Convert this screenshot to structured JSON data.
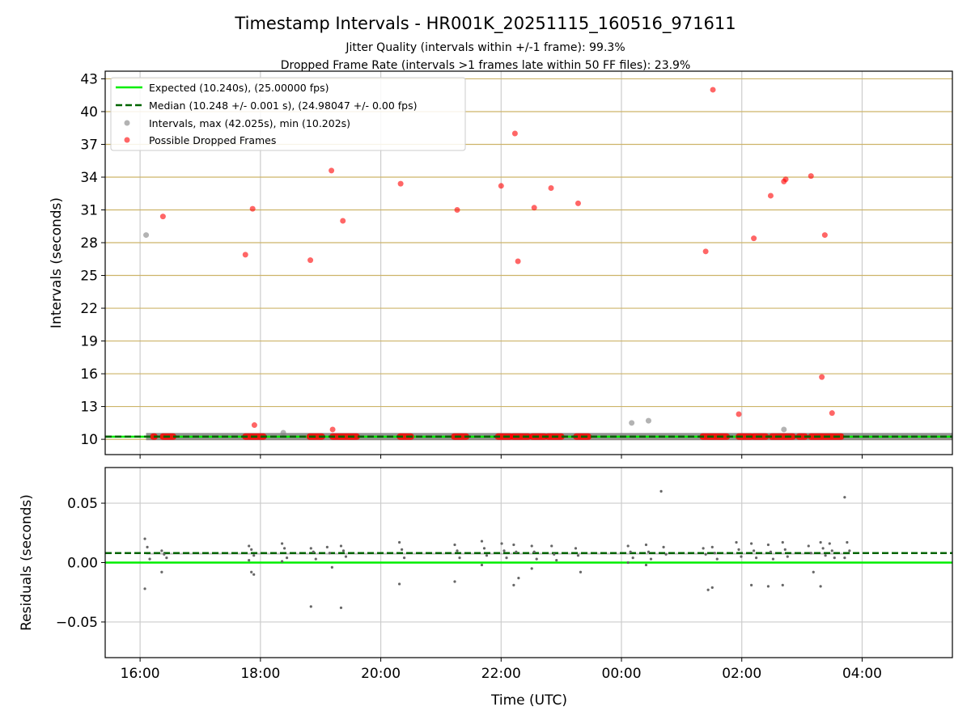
{
  "chart_data": [
    {
      "type": "scatter",
      "panel": "top",
      "title": "Timestamp Intervals - HR001K_20251115_160516_971611",
      "subtitle_1": "Jitter Quality (intervals within +/-1 frame): 99.3%",
      "subtitle_2": "Dropped Frame Rate (intervals >1 frames late within 50 FF files): 23.9%",
      "xlabel": "Time (UTC)",
      "ylabel": "Intervals (seconds)",
      "xlim": [
        15.42,
        29.5
      ],
      "ylim": [
        8.6,
        43.7
      ],
      "x_ticks": [
        16,
        18,
        20,
        22,
        24,
        26,
        28
      ],
      "x_tick_labels": [
        "16:00",
        "18:00",
        "20:00",
        "22:00",
        "00:00",
        "02:00",
        "04:00"
      ],
      "y_ticks": [
        10,
        13,
        16,
        19,
        22,
        25,
        28,
        31,
        34,
        37,
        40,
        43
      ],
      "y_tick_labels": [
        "10",
        "13",
        "16",
        "19",
        "22",
        "25",
        "28",
        "31",
        "34",
        "37",
        "40",
        "43"
      ],
      "grid": true,
      "legend_location": "top-left",
      "colors": {
        "expected": "#00ee00",
        "median": "#006400",
        "intervals": "#808080",
        "dropped": "#ff0000",
        "horizontal_grid": "#cdb469",
        "vertical_grid": "#cccccc"
      },
      "series": [
        {
          "name": "Expected (10.240s), (25.00000 fps)",
          "kind": "hline",
          "value": 10.24
        },
        {
          "name": "Median (10.248 +/- 0.001 s), (24.98047 +/- 0.00 fps)",
          "kind": "hline-dashed",
          "value": 10.248
        },
        {
          "name": "Intervals, max (42.025s), min (10.202s)",
          "kind": "scatter",
          "x_range": [
            16.1,
            29.5
          ],
          "baseline": 10.248,
          "points": [
            {
              "x": 16.1,
              "y": 28.7
            },
            {
              "x": 18.38,
              "y": 10.6
            },
            {
              "x": 24.17,
              "y": 11.5
            },
            {
              "x": 24.45,
              "y": 11.7
            },
            {
              "x": 26.7,
              "y": 10.9
            }
          ]
        },
        {
          "name": "Possible Dropped Frames",
          "kind": "scatter",
          "points": [
            {
              "x": 16.38,
              "y": 30.4
            },
            {
              "x": 17.75,
              "y": 26.9
            },
            {
              "x": 17.87,
              "y": 31.1
            },
            {
              "x": 17.9,
              "y": 11.3
            },
            {
              "x": 18.83,
              "y": 26.4
            },
            {
              "x": 19.18,
              "y": 34.6
            },
            {
              "x": 19.2,
              "y": 10.9
            },
            {
              "x": 19.37,
              "y": 30.0
            },
            {
              "x": 20.33,
              "y": 33.4
            },
            {
              "x": 21.27,
              "y": 31.0
            },
            {
              "x": 22.0,
              "y": 33.2
            },
            {
              "x": 22.23,
              "y": 38.0
            },
            {
              "x": 22.28,
              "y": 26.3
            },
            {
              "x": 22.55,
              "y": 31.2
            },
            {
              "x": 22.83,
              "y": 33.0
            },
            {
              "x": 23.28,
              "y": 31.6
            },
            {
              "x": 25.4,
              "y": 27.2
            },
            {
              "x": 25.52,
              "y": 42.0
            },
            {
              "x": 25.95,
              "y": 12.3
            },
            {
              "x": 26.2,
              "y": 28.4
            },
            {
              "x": 26.48,
              "y": 32.3
            },
            {
              "x": 26.7,
              "y": 33.6
            },
            {
              "x": 26.73,
              "y": 33.8
            },
            {
              "x": 27.15,
              "y": 34.1
            },
            {
              "x": 27.33,
              "y": 15.7
            },
            {
              "x": 27.38,
              "y": 28.7
            },
            {
              "x": 27.5,
              "y": 12.4
            }
          ],
          "clusters_at_baseline": [
            [
              16.22,
              16.24
            ],
            [
              16.38,
              16.55
            ],
            [
              17.75,
              18.05
            ],
            [
              18.82,
              19.02
            ],
            [
              19.2,
              19.6
            ],
            [
              20.32,
              20.5
            ],
            [
              21.22,
              21.42
            ],
            [
              21.95,
              22.15
            ],
            [
              22.2,
              22.45
            ],
            [
              22.52,
              22.72
            ],
            [
              22.78,
              23.0
            ],
            [
              23.25,
              23.45
            ],
            [
              25.35,
              25.75
            ],
            [
              25.95,
              26.15
            ],
            [
              26.2,
              26.4
            ],
            [
              26.5,
              26.85
            ],
            [
              26.95,
              27.05
            ],
            [
              27.15,
              27.65
            ]
          ]
        }
      ]
    },
    {
      "type": "scatter",
      "panel": "bottom",
      "xlabel": "Time (UTC)",
      "ylabel": "Residuals (seconds)",
      "xlim": [
        15.42,
        29.5
      ],
      "ylim": [
        -0.08,
        0.08
      ],
      "x_ticks": [
        16,
        18,
        20,
        22,
        24,
        26,
        28
      ],
      "x_tick_labels": [
        "16:00",
        "18:00",
        "20:00",
        "22:00",
        "00:00",
        "02:00",
        "04:00"
      ],
      "y_ticks": [
        0.05,
        0.0,
        -0.05
      ],
      "y_tick_labels": [
        "0.05",
        "0.00",
        "−0.05"
      ],
      "grid": true,
      "series": [
        {
          "name": "Expected",
          "kind": "hline",
          "value": 0.0
        },
        {
          "name": "Median",
          "kind": "hline-dashed",
          "value": 0.008
        },
        {
          "name": "Residuals",
          "kind": "scatter",
          "clusters": [
            {
              "x": 16.12,
              "values": [
                0.02,
                0.013,
                0.003,
                -0.022
              ]
            },
            {
              "x": 16.4,
              "values": [
                0.01,
                0.007,
                0.004,
                -0.008
              ]
            },
            {
              "x": 17.85,
              "values": [
                0.014,
                0.011,
                0.006,
                0.002,
                -0.008,
                -0.01
              ]
            },
            {
              "x": 18.4,
              "values": [
                0.016,
                0.012,
                0.004,
                0.001
              ]
            },
            {
              "x": 18.88,
              "values": [
                0.012,
                0.009,
                0.003,
                -0.037
              ]
            },
            {
              "x": 19.15,
              "values": [
                0.013,
                0.008,
                -0.004
              ]
            },
            {
              "x": 19.38,
              "values": [
                0.014,
                0.01,
                0.005,
                -0.038
              ]
            },
            {
              "x": 20.35,
              "values": [
                0.017,
                0.011,
                0.004,
                -0.018
              ]
            },
            {
              "x": 21.27,
              "values": [
                0.015,
                0.01,
                0.004,
                -0.016
              ]
            },
            {
              "x": 21.72,
              "values": [
                0.018,
                0.012,
                0.006,
                -0.002
              ]
            },
            {
              "x": 22.05,
              "values": [
                0.016,
                0.01,
                0.004
              ]
            },
            {
              "x": 22.25,
              "values": [
                0.015,
                0.009,
                -0.013,
                -0.019
              ]
            },
            {
              "x": 22.55,
              "values": [
                0.014,
                0.009,
                0.003,
                -0.005
              ]
            },
            {
              "x": 22.88,
              "values": [
                0.014,
                0.007,
                0.002
              ]
            },
            {
              "x": 23.28,
              "values": [
                0.012,
                0.006,
                -0.008
              ]
            },
            {
              "x": 24.15,
              "values": [
                0.014,
                0.009,
                0.004,
                0.0
              ]
            },
            {
              "x": 24.45,
              "values": [
                0.015,
                0.009,
                0.003,
                -0.002
              ]
            },
            {
              "x": 24.7,
              "values": [
                0.06,
                0.013,
                0.007
              ]
            },
            {
              "x": 25.4,
              "values": [
                0.012,
                0.007,
                -0.023
              ]
            },
            {
              "x": 25.55,
              "values": [
                0.013,
                0.008,
                0.003,
                -0.021
              ]
            },
            {
              "x": 25.95,
              "values": [
                0.017,
                0.011,
                0.005
              ]
            },
            {
              "x": 26.2,
              "values": [
                0.016,
                0.01,
                0.004,
                -0.019
              ]
            },
            {
              "x": 26.48,
              "values": [
                0.015,
                0.009,
                0.003,
                -0.02
              ]
            },
            {
              "x": 26.72,
              "values": [
                0.017,
                0.011,
                0.005,
                -0.019
              ]
            },
            {
              "x": 27.15,
              "values": [
                0.014,
                0.008,
                -0.008
              ]
            },
            {
              "x": 27.35,
              "values": [
                0.017,
                0.012,
                0.006,
                -0.02
              ]
            },
            {
              "x": 27.5,
              "values": [
                0.016,
                0.01,
                0.004
              ]
            },
            {
              "x": 27.75,
              "values": [
                0.055,
                0.017,
                0.01,
                0.004
              ]
            }
          ]
        }
      ]
    }
  ]
}
